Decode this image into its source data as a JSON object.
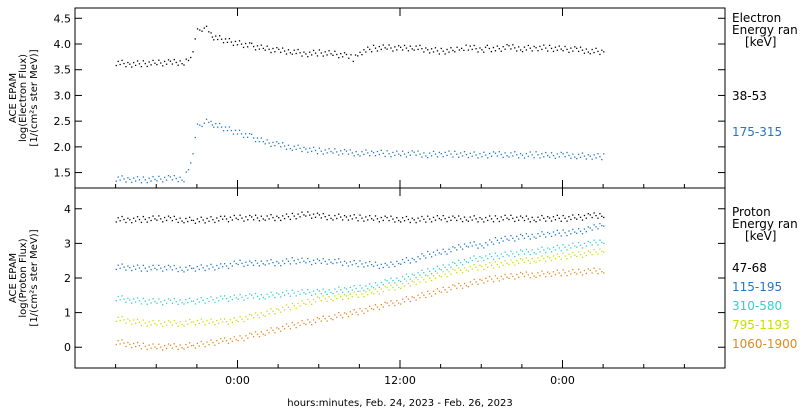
{
  "chart_data": [
    {
      "type": "scatter",
      "panel": "electron",
      "ylabel": [
        "ACE EPAM",
        "log(Electron Flux)",
        "[1/(cm²s ster MeV)]"
      ],
      "ylim": [
        1.2,
        4.7
      ],
      "yticks": [
        1.5,
        2.0,
        2.5,
        3.0,
        3.5,
        4.0,
        4.5
      ],
      "ytick_labels": [
        "1.5",
        "2.0",
        "2.5",
        "3.0",
        "3.5",
        "4.0",
        "4.5"
      ],
      "legend_title": [
        "Electron",
        "Energy ran",
        "[keV]"
      ],
      "series": [
        {
          "name": "38-53",
          "color": "#000000",
          "points": [
            [
              -9,
              3.65
            ],
            [
              -8,
              3.62
            ],
            [
              -7,
              3.63
            ],
            [
              -6,
              3.64
            ],
            [
              -5,
              3.65
            ],
            [
              -4,
              3.66
            ],
            [
              -3.5,
              3.75
            ],
            [
              -3,
              4.25
            ],
            [
              -2.5,
              4.35
            ],
            [
              -2,
              4.2
            ],
            [
              -1.8,
              4.15
            ],
            [
              -0.5,
              4.05
            ],
            [
              1,
              3.97
            ],
            [
              2,
              3.92
            ],
            [
              3,
              3.88
            ],
            [
              4,
              3.87
            ],
            [
              5,
              3.82
            ],
            [
              6,
              3.84
            ],
            [
              7,
              3.82
            ],
            [
              8,
              3.78
            ],
            [
              8.5,
              3.73
            ],
            [
              9,
              3.85
            ],
            [
              10,
              3.93
            ],
            [
              11,
              3.94
            ],
            [
              12,
              3.92
            ],
            [
              13,
              3.95
            ],
            [
              14,
              3.9
            ],
            [
              15,
              3.87
            ],
            [
              16,
              3.89
            ],
            [
              16.5,
              3.9
            ],
            [
              17,
              3.95
            ],
            [
              18,
              3.9
            ],
            [
              18.4,
              3.93
            ],
            [
              19,
              3.91
            ],
            [
              20,
              3.95
            ],
            [
              21,
              3.92
            ],
            [
              22,
              3.94
            ],
            [
              23,
              3.93
            ],
            [
              24,
              3.91
            ],
            [
              25,
              3.9
            ],
            [
              26,
              3.88
            ],
            [
              27,
              3.86
            ]
          ]
        },
        {
          "name": "175-315",
          "color": "#1f77c8",
          "points": [
            [
              -9,
              1.4
            ],
            [
              -8,
              1.38
            ],
            [
              -7,
              1.37
            ],
            [
              -6,
              1.38
            ],
            [
              -5,
              1.4
            ],
            [
              -4,
              1.39
            ],
            [
              -3.5,
              1.7
            ],
            [
              -3,
              2.4
            ],
            [
              -2.5,
              2.5
            ],
            [
              -2,
              2.48
            ],
            [
              -1.8,
              2.45
            ],
            [
              -0.5,
              2.33
            ],
            [
              1,
              2.2
            ],
            [
              2,
              2.1
            ],
            [
              3,
              2.05
            ],
            [
              4,
              2.0
            ],
            [
              5,
              1.97
            ],
            [
              6,
              1.93
            ],
            [
              7,
              1.92
            ],
            [
              8,
              1.9
            ],
            [
              9,
              1.89
            ],
            [
              10,
              1.9
            ],
            [
              11,
              1.88
            ],
            [
              12,
              1.87
            ],
            [
              13,
              1.88
            ],
            [
              14,
              1.86
            ],
            [
              15,
              1.88
            ],
            [
              16,
              1.87
            ],
            [
              18,
              1.85
            ],
            [
              19,
              1.86
            ],
            [
              20,
              1.87
            ],
            [
              21,
              1.85
            ],
            [
              22,
              1.86
            ],
            [
              23,
              1.84
            ],
            [
              24,
              1.85
            ],
            [
              25,
              1.84
            ],
            [
              26,
              1.83
            ],
            [
              27,
              1.82
            ]
          ]
        }
      ]
    },
    {
      "type": "scatter",
      "panel": "proton",
      "xlabel": "hours:minutes, Feb. 24, 2023 - Feb. 26, 2023",
      "ylabel": [
        "ACE EPAM",
        "log(Proton Flux)",
        "[1/(cm²s ster MeV)]"
      ],
      "ylim": [
        -0.6,
        4.6
      ],
      "yticks": [
        0,
        1,
        2,
        3,
        4
      ],
      "ytick_labels": [
        "0",
        "1",
        "2",
        "3",
        "4"
      ],
      "xlim": [
        -12,
        36
      ],
      "xticks": [
        0,
        12,
        24
      ],
      "xtick_labels": [
        "0:00",
        "12:00",
        "0:00"
      ],
      "legend_title": [
        "Proton",
        "Energy ran",
        "[keV]"
      ],
      "series": [
        {
          "name": "47-68",
          "color": "#000000",
          "points": [
            [
              -9,
              3.72
            ],
            [
              -8,
              3.7
            ],
            [
              -7,
              3.71
            ],
            [
              -6,
              3.73
            ],
            [
              -5,
              3.72
            ],
            [
              -4,
              3.7
            ],
            [
              -3.3,
              3.68
            ],
            [
              -1,
              3.72
            ],
            [
              0,
              3.75
            ],
            [
              1,
              3.74
            ],
            [
              2,
              3.77
            ],
            [
              3,
              3.76
            ],
            [
              4,
              3.8
            ],
            [
              5,
              3.85
            ],
            [
              6,
              3.8
            ],
            [
              7,
              3.78
            ],
            [
              8,
              3.78
            ],
            [
              9,
              3.75
            ],
            [
              10,
              3.73
            ],
            [
              11,
              3.72
            ],
            [
              12,
              3.72
            ],
            [
              13,
              3.7
            ],
            [
              14,
              3.72
            ],
            [
              15,
              3.74
            ],
            [
              16,
              3.72
            ],
            [
              17,
              3.74
            ],
            [
              18,
              3.72
            ],
            [
              19,
              3.73
            ],
            [
              20,
              3.75
            ],
            [
              21,
              3.72
            ],
            [
              22,
              3.73
            ],
            [
              23,
              3.75
            ],
            [
              24,
              3.74
            ],
            [
              25,
              3.76
            ],
            [
              26,
              3.8
            ],
            [
              27,
              3.85
            ]
          ]
        },
        {
          "name": "115-195",
          "color": "#1f77c8",
          "points": [
            [
              -9,
              2.35
            ],
            [
              -8,
              2.32
            ],
            [
              -7,
              2.3
            ],
            [
              -6,
              2.3
            ],
            [
              -5,
              2.3
            ],
            [
              -4,
              2.28
            ],
            [
              -3.3,
              2.3
            ],
            [
              -1,
              2.35
            ],
            [
              0,
              2.45
            ],
            [
              1,
              2.42
            ],
            [
              2,
              2.48
            ],
            [
              3,
              2.45
            ],
            [
              4,
              2.52
            ],
            [
              5,
              2.5
            ],
            [
              6,
              2.48
            ],
            [
              7,
              2.52
            ],
            [
              8,
              2.45
            ],
            [
              9,
              2.43
            ],
            [
              10,
              2.4
            ],
            [
              11,
              2.35
            ],
            [
              12,
              2.5
            ],
            [
              13,
              2.55
            ],
            [
              14,
              2.7
            ],
            [
              15,
              2.75
            ],
            [
              16,
              2.85
            ],
            [
              17,
              3.0
            ],
            [
              18,
              2.95
            ],
            [
              19,
              3.1
            ],
            [
              20,
              3.15
            ],
            [
              21,
              3.2
            ],
            [
              22,
              3.25
            ],
            [
              23,
              3.3
            ],
            [
              24,
              3.32
            ],
            [
              25,
              3.35
            ],
            [
              26,
              3.42
            ],
            [
              27,
              3.6
            ]
          ]
        },
        {
          "name": "310-580",
          "color": "#30d0d0",
          "points": [
            [
              -9,
              1.45
            ],
            [
              -8,
              1.38
            ],
            [
              -7,
              1.35
            ],
            [
              -6,
              1.33
            ],
            [
              -5,
              1.33
            ],
            [
              -4,
              1.35
            ],
            [
              -3.3,
              1.35
            ],
            [
              -1,
              1.42
            ],
            [
              0,
              1.45
            ],
            [
              1,
              1.48
            ],
            [
              2,
              1.5
            ],
            [
              3,
              1.55
            ],
            [
              4,
              1.58
            ],
            [
              5,
              1.6
            ],
            [
              6,
              1.6
            ],
            [
              7,
              1.65
            ],
            [
              8,
              1.7
            ],
            [
              9,
              1.72
            ],
            [
              10,
              1.78
            ],
            [
              11,
              1.9
            ],
            [
              12,
              2.0
            ],
            [
              13,
              2.1
            ],
            [
              14,
              2.2
            ],
            [
              15,
              2.3
            ],
            [
              16,
              2.4
            ],
            [
              17,
              2.55
            ],
            [
              18,
              2.6
            ],
            [
              19,
              2.65
            ],
            [
              20,
              2.7
            ],
            [
              21,
              2.75
            ],
            [
              22,
              2.8
            ],
            [
              23,
              2.85
            ],
            [
              24,
              2.9
            ],
            [
              25,
              2.95
            ],
            [
              26,
              3.0
            ],
            [
              27,
              3.1
            ]
          ]
        },
        {
          "name": "795-1193",
          "color": "#c8e000",
          "points": [
            [
              -9,
              0.85
            ],
            [
              -8,
              0.78
            ],
            [
              -7,
              0.72
            ],
            [
              -6,
              0.7
            ],
            [
              -5,
              0.7
            ],
            [
              -4,
              0.72
            ],
            [
              -3.3,
              0.75
            ],
            [
              -1,
              0.75
            ],
            [
              0,
              0.8
            ],
            [
              1,
              0.9
            ],
            [
              2,
              1.0
            ],
            [
              3,
              1.1
            ],
            [
              4,
              1.2
            ],
            [
              5,
              1.3
            ],
            [
              6,
              1.4
            ],
            [
              7,
              1.45
            ],
            [
              8,
              1.5
            ],
            [
              9,
              1.55
            ],
            [
              10,
              1.6
            ],
            [
              11,
              1.7
            ],
            [
              12,
              1.8
            ],
            [
              13,
              1.9
            ],
            [
              14,
              2.0
            ],
            [
              15,
              2.1
            ],
            [
              16,
              2.2
            ],
            [
              17,
              2.3
            ],
            [
              18,
              2.35
            ],
            [
              19,
              2.4
            ],
            [
              20,
              2.45
            ],
            [
              21,
              2.5
            ],
            [
              22,
              2.55
            ],
            [
              23,
              2.6
            ],
            [
              24,
              2.65
            ],
            [
              25,
              2.68
            ],
            [
              26,
              2.72
            ],
            [
              27,
              2.85
            ]
          ]
        },
        {
          "name": "1060-1900",
          "color": "#e08a20",
          "points": [
            [
              -9,
              0.18
            ],
            [
              -8,
              0.1
            ],
            [
              -7,
              0.05
            ],
            [
              -6,
              0.02
            ],
            [
              -5,
              0.03
            ],
            [
              -4,
              0.05
            ],
            [
              -3.3,
              0.07
            ],
            [
              -1,
              0.2
            ],
            [
              0,
              0.25
            ],
            [
              1,
              0.35
            ],
            [
              2,
              0.45
            ],
            [
              3,
              0.55
            ],
            [
              4,
              0.65
            ],
            [
              5,
              0.72
            ],
            [
              6,
              0.8
            ],
            [
              7,
              0.9
            ],
            [
              8,
              0.98
            ],
            [
              9,
              1.05
            ],
            [
              10,
              1.15
            ],
            [
              11,
              1.25
            ],
            [
              12,
              1.35
            ],
            [
              13,
              1.45
            ],
            [
              14,
              1.55
            ],
            [
              15,
              1.65
            ],
            [
              16,
              1.75
            ],
            [
              17,
              1.85
            ],
            [
              18,
              1.95
            ],
            [
              19,
              2.0
            ],
            [
              20,
              2.05
            ],
            [
              21,
              2.1
            ],
            [
              22,
              2.12
            ],
            [
              23,
              2.15
            ],
            [
              24,
              2.17
            ],
            [
              25,
              2.18
            ],
            [
              26,
              2.2
            ],
            [
              27,
              2.25
            ]
          ]
        }
      ]
    }
  ]
}
